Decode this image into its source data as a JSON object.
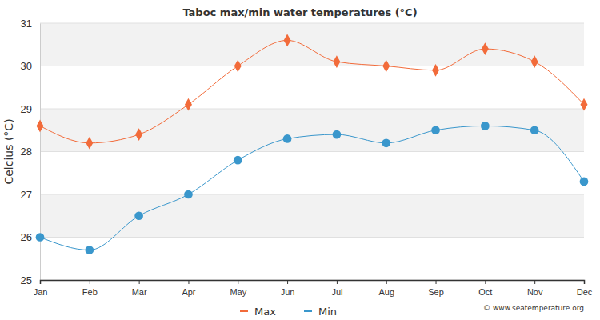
{
  "chart_data": {
    "type": "line",
    "title": "Taboc max/min water temperatures (°C)",
    "y_label": "Celcius (°C)",
    "annotations": [
      "© www.seatemperature.org"
    ],
    "categories": [
      "Jan",
      "Feb",
      "Mar",
      "Apr",
      "May",
      "Jun",
      "Jul",
      "Aug",
      "Sep",
      "Oct",
      "Nov",
      "Dec"
    ],
    "series": [
      {
        "name": "Max",
        "color": "#f26b3a",
        "marker": "diamond",
        "values": [
          28.6,
          28.2,
          28.4,
          29.1,
          30.0,
          30.6,
          30.1,
          30.0,
          29.9,
          30.4,
          30.1,
          29.1
        ]
      },
      {
        "name": "Min",
        "color": "#3a97cc",
        "marker": "circle",
        "values": [
          26.0,
          25.7,
          26.5,
          27.0,
          27.8,
          28.3,
          28.4,
          28.2,
          28.5,
          28.6,
          28.5,
          27.3
        ]
      }
    ],
    "ylim": [
      25,
      31
    ],
    "yticks": [
      25,
      26,
      27,
      28,
      29,
      30,
      31
    ],
    "grid": true,
    "legend": "bottom"
  }
}
